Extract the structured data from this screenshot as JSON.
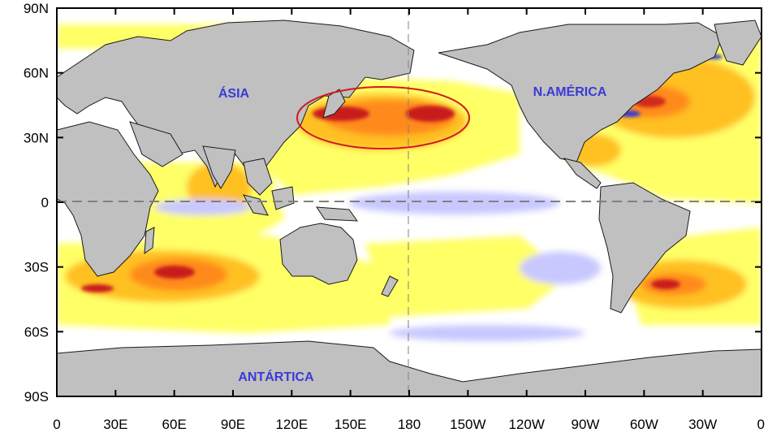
{
  "map": {
    "y_ticks": [
      "90N",
      "60N",
      "30N",
      "0",
      "30S",
      "60S",
      "90S"
    ],
    "x_ticks": [
      "0",
      "30E",
      "60E",
      "90E",
      "120E",
      "150E",
      "180",
      "150W",
      "120W",
      "90W",
      "60W",
      "30W",
      "0"
    ],
    "regions": {
      "asia": "ÁSIA",
      "north_america": "N.AMÉRICA",
      "antarctica": "ANTÁRTICA"
    },
    "colors": {
      "land": "#c0c0c0",
      "ocean_neutral": "#ffffff",
      "anomaly_weak_warm": "#ffff66",
      "anomaly_moderate_warm": "#ffc020",
      "anomaly_strong_warm": "#ff8a1a",
      "anomaly_extreme_warm": "#c81a1a",
      "anomaly_cool": "#c8c8ff",
      "anomaly_strong_cool": "#3a3ad0",
      "highlight_ellipse": "#d21a1a",
      "region_label": "#3a3ad6",
      "reference_line": "#808080"
    },
    "highlight": "strong warm anomaly region, North Pacific",
    "reference_lines": [
      "equator",
      "180 meridian"
    ]
  }
}
